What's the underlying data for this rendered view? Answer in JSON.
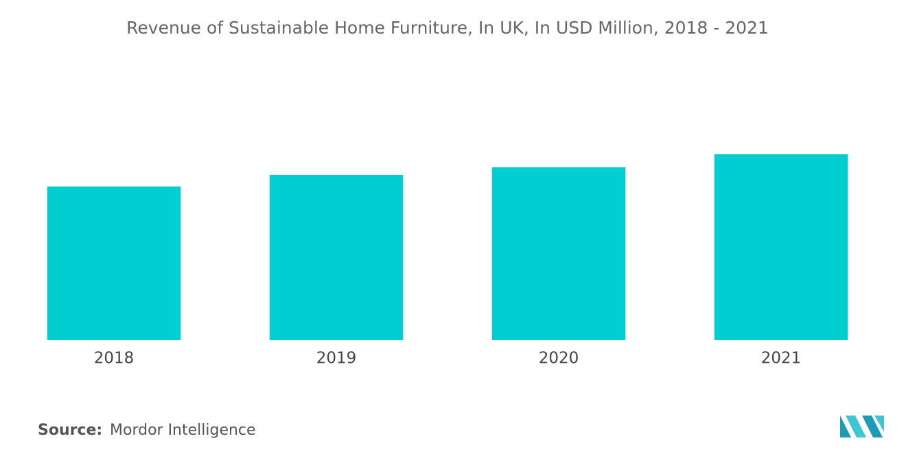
{
  "chart_data": {
    "type": "bar",
    "title": "Revenue of Sustainable Home Furniture, In UK, In USD Million, 2018 - 2021",
    "categories": [
      "2018",
      "2019",
      "2020",
      "2021"
    ],
    "values": [
      224,
      241,
      252,
      271
    ],
    "color": "#00ced1",
    "ylim": [
      0,
      300
    ],
    "grid": false,
    "source_label": "Source:",
    "source": "Mordor Intelligence"
  }
}
